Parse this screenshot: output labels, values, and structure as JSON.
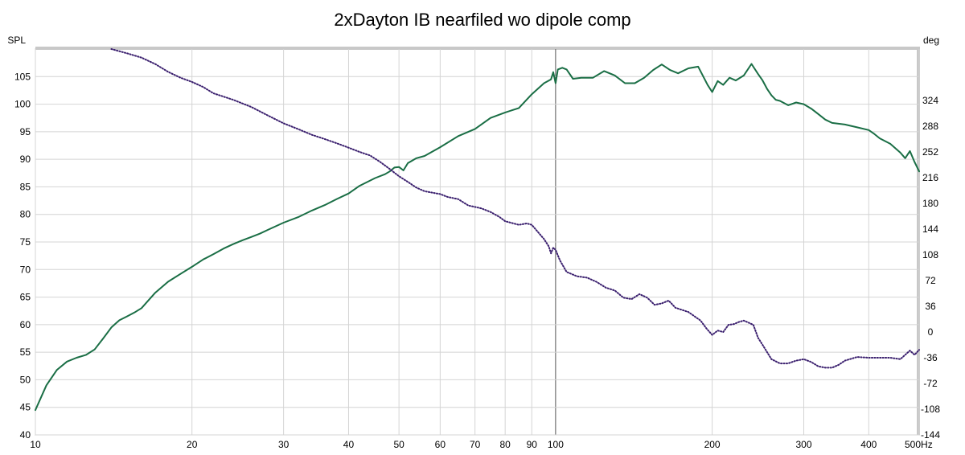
{
  "chart_data": {
    "type": "line",
    "title": "2xDayton IB nearfiled wo dipole comp",
    "left_axis_label": "SPL",
    "right_axis_label": "deg",
    "x_unit": "Hz",
    "x_scale": "log",
    "xlim": [
      10,
      500
    ],
    "ylim_left": [
      40,
      110
    ],
    "ylim_right": [
      -144,
      396
    ],
    "x_ticks": [
      10,
      20,
      30,
      40,
      50,
      60,
      70,
      80,
      90,
      100,
      200,
      300,
      400,
      500
    ],
    "x_tick_labels": [
      "10",
      "20",
      "30",
      "40",
      "50",
      "60",
      "70",
      "80",
      "90",
      "100",
      "200",
      "300",
      "400",
      "500Hz"
    ],
    "y_left_ticks": [
      40,
      45,
      50,
      55,
      60,
      65,
      70,
      75,
      80,
      85,
      90,
      95,
      100,
      105
    ],
    "y_left_tick_labels": [
      "40",
      "45",
      "50",
      "55",
      "60",
      "65",
      "70",
      "75",
      "80",
      "85",
      "90",
      "95",
      "100",
      "105"
    ],
    "y_right_ticks": [
      -144,
      -108,
      -72,
      -36,
      0,
      36,
      72,
      108,
      144,
      180,
      216,
      252,
      288,
      324
    ],
    "y_right_tick_labels": [
      "-144",
      "-108",
      "-72",
      "-36",
      "0",
      "36",
      "72",
      "108",
      "144",
      "180",
      "216",
      "252",
      "288",
      "324"
    ],
    "grid": true,
    "series": [
      {
        "axis": "left",
        "color": "#1a6e45",
        "style": "solid",
        "x": [
          10,
          10.5,
          11,
          11.5,
          12,
          12.5,
          13,
          13.5,
          14,
          14.5,
          15,
          15.5,
          16,
          17,
          18,
          19,
          20,
          21,
          22,
          23,
          24,
          25,
          26,
          27,
          28,
          30,
          32,
          34,
          36,
          38,
          40,
          42,
          45,
          47,
          48,
          49,
          50,
          51,
          52,
          54,
          56,
          60,
          65,
          70,
          75,
          80,
          85,
          90,
          95,
          98,
          99,
          100,
          101,
          103,
          105,
          108,
          112,
          118,
          124,
          130,
          136,
          142,
          148,
          154,
          160,
          166,
          172,
          180,
          188,
          196,
          200,
          205,
          210,
          216,
          222,
          230,
          238,
          245,
          250,
          255,
          260,
          265,
          270,
          280,
          290,
          300,
          310,
          320,
          330,
          340,
          360,
          380,
          400,
          410,
          420,
          440,
          460,
          470,
          480,
          490,
          500
        ],
        "y": [
          44.5,
          49,
          51.8,
          53.3,
          54,
          54.5,
          55.5,
          57.5,
          59.5,
          60.8,
          61.5,
          62.2,
          63,
          65.8,
          67.8,
          69.2,
          70.5,
          71.8,
          72.8,
          73.8,
          74.6,
          75.3,
          75.9,
          76.5,
          77.2,
          78.5,
          79.5,
          80.7,
          81.7,
          82.8,
          83.8,
          85.2,
          86.6,
          87.3,
          87.8,
          88.5,
          88.6,
          88,
          89.3,
          90.2,
          90.6,
          92.2,
          94.2,
          95.5,
          97.5,
          98.5,
          99.3,
          101.8,
          103.8,
          104.5,
          105.8,
          103.8,
          106.3,
          106.6,
          106.3,
          104.6,
          104.8,
          104.8,
          106,
          105.2,
          103.8,
          103.8,
          104.8,
          106.2,
          107.2,
          106.2,
          105.6,
          106.5,
          106.8,
          103.5,
          102.2,
          104.2,
          103.5,
          104.8,
          104.3,
          105.2,
          107.3,
          105.5,
          104.3,
          102.8,
          101.6,
          100.8,
          100.6,
          99.8,
          100.3,
          100,
          99.2,
          98.2,
          97.2,
          96.6,
          96.3,
          95.8,
          95.3,
          94.6,
          93.8,
          92.8,
          91.2,
          90.2,
          91.5,
          89.5,
          87.8
        ]
      },
      {
        "axis": "right",
        "color": "#3a1f6e",
        "style": "dotted",
        "x": [
          14,
          15,
          16,
          17,
          18,
          19,
          20,
          21,
          22,
          24,
          26,
          28,
          30,
          32,
          34,
          36,
          38,
          40,
          42,
          44,
          46,
          48,
          50,
          52,
          54,
          56,
          58,
          60,
          62,
          65,
          68,
          70,
          72,
          75,
          78,
          80,
          85,
          88,
          90,
          92,
          95,
          97,
          98,
          99,
          100,
          102,
          105,
          110,
          115,
          120,
          125,
          130,
          135,
          140,
          145,
          150,
          155,
          160,
          165,
          170,
          180,
          190,
          195,
          200,
          205,
          210,
          215,
          220,
          225,
          230,
          235,
          240,
          245,
          250,
          260,
          270,
          280,
          290,
          300,
          310,
          320,
          330,
          340,
          350,
          360,
          380,
          400,
          420,
          440,
          460,
          480,
          490,
          500
        ],
        "y": [
          396,
          390,
          384,
          375,
          364,
          356,
          350,
          343,
          334,
          325,
          315,
          303,
          292,
          284,
          276,
          270,
          264,
          258,
          252,
          247,
          238,
          228,
          218,
          210,
          202,
          197,
          195,
          193,
          189,
          186,
          177,
          175,
          173,
          168,
          161,
          155,
          150,
          152,
          150,
          142,
          130,
          120,
          110,
          118,
          115,
          100,
          84,
          78,
          76,
          70,
          62,
          58,
          48,
          46,
          53,
          48,
          38,
          40,
          44,
          34,
          28,
          16,
          5,
          -4,
          2,
          0,
          10,
          11,
          14,
          16,
          13,
          10,
          -8,
          -18,
          -38,
          -44,
          -44,
          -40,
          -38,
          -42,
          -48,
          -50,
          -50,
          -46,
          -40,
          -35,
          -36,
          -36,
          -36,
          -38,
          -26,
          -32,
          -25
        ]
      }
    ]
  }
}
